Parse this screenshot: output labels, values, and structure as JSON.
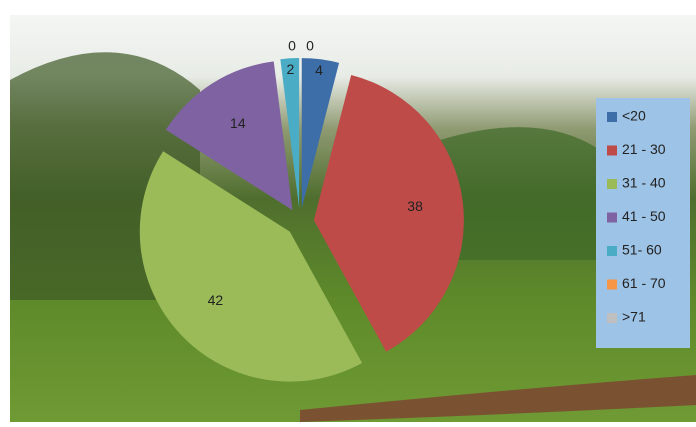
{
  "chart_data": {
    "type": "pie",
    "categories": [
      "<20",
      "21 - 30",
      "31 - 40",
      "41 - 50",
      "51- 60",
      "61 - 70",
      ">71"
    ],
    "values": [
      4,
      38,
      42,
      14,
      2,
      0,
      0
    ],
    "colors": [
      "#3d6ea8",
      "#be4b48",
      "#9bbb59",
      "#7f62a1",
      "#4bacc6",
      "#f79646",
      "#bfbfbf"
    ],
    "legend": "right"
  }
}
